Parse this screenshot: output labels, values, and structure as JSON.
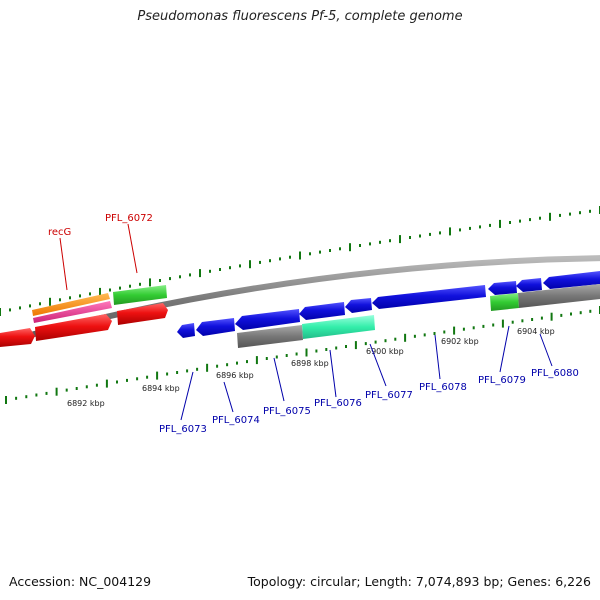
{
  "title": "Pseudomonas fluorescens Pf-5, complete genome",
  "footer": {
    "accession": "Accession: NC_004129",
    "summary": "Topology: circular; Length: 7,074,893 bp; Genes: 6,226"
  },
  "scale_labels": [
    "6892 kbp",
    "6894 kbp",
    "6896 kbp",
    "6898 kbp",
    "6900 kbp",
    "6902 kbp",
    "6904 kbp"
  ],
  "forward_labels": [
    "recG",
    "PFL_6072"
  ],
  "reverse_labels": [
    "PFL_6073",
    "PFL_6074",
    "PFL_6075",
    "PFL_6076",
    "PFL_6077",
    "PFL_6078",
    "PFL_6079",
    "PFL_6080"
  ],
  "colors": {
    "forward_label": "#cc0000",
    "reverse_label": "#0000aa",
    "cds_red": "#ee1111",
    "cds_blue": "#1111dd",
    "gene_orange": "#ff8800",
    "gene_pink": "#ee3399",
    "gene_green": "#33cc33",
    "gene_aqua": "#33eeaa",
    "gene_grey": "#777777",
    "tick": "#117711",
    "backbone": "#888888"
  }
}
